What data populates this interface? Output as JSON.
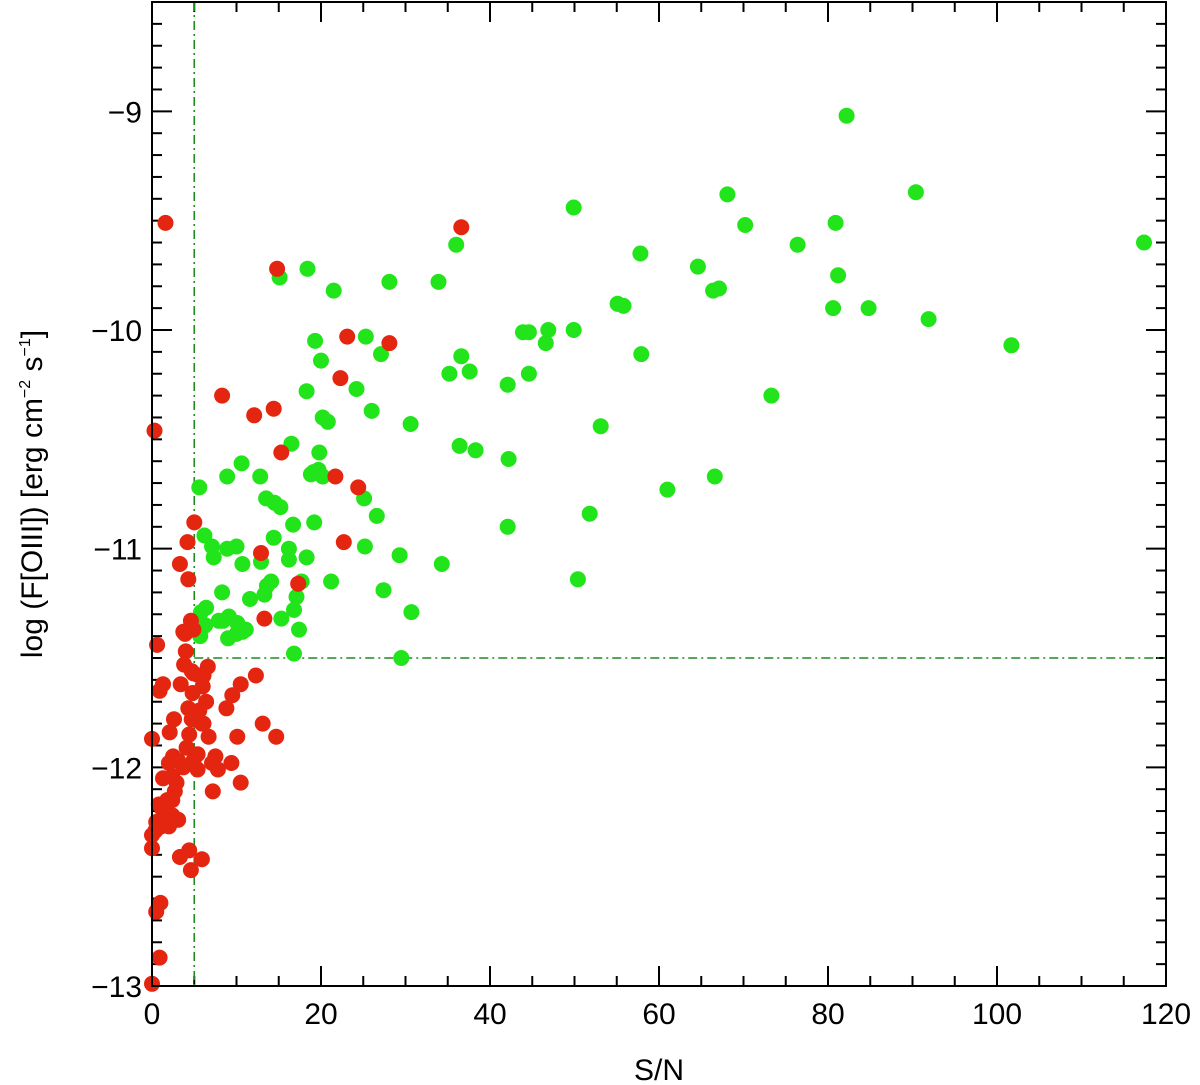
{
  "chart_data": {
    "type": "scatter",
    "title": "",
    "xlabel": "S/N",
    "ylabel": {
      "prefix": "log (F[OIII])  [erg cm",
      "exp1": "−2",
      "mid": " s",
      "exp2": "−1",
      "suffix": "]"
    },
    "xlim": [
      0,
      120
    ],
    "ylim": [
      -13,
      -8.5
    ],
    "x_ticks": [
      0,
      20,
      40,
      60,
      80,
      100,
      120
    ],
    "x_tick_labels": [
      "0",
      "20",
      "40",
      "60",
      "80",
      "100",
      "120"
    ],
    "y_ticks": [
      -13,
      -12,
      -11,
      -10,
      -9
    ],
    "y_tick_labels": [
      "−13",
      "−12",
      "−11",
      "−10",
      "−9"
    ],
    "thresholds": {
      "x": 5,
      "y": -11.5
    },
    "grid": false,
    "colors": {
      "green": "#22e41a",
      "red": "#e4250f",
      "threshold": "#1e8c1e"
    },
    "series": [
      {
        "color": "green",
        "x": [
          82.2,
          68.1,
          90.4,
          49.9,
          80.9,
          70.2,
          36.0,
          76.4,
          117.4,
          57.8,
          64.6,
          15.1,
          18.4,
          81.2,
          28.1,
          33.9,
          67.1,
          66.4,
          21.5,
          55.1,
          55.8,
          80.6,
          84.8,
          91.9,
          25.3,
          43.9,
          44.6,
          46.9,
          49.9,
          19.3,
          101.7,
          46.6,
          27.1,
          36.6,
          20.0,
          57.9,
          35.2,
          37.6,
          44.6,
          24.2,
          18.3,
          42.1,
          73.3,
          26.0,
          20.2,
          20.8,
          30.6,
          53.1,
          36.4,
          38.3,
          16.5,
          19.8,
          42.2,
          19.7,
          10.6,
          19.1,
          20.2,
          18.8,
          12.8,
          8.9,
          66.6,
          61.0,
          5.6,
          13.5,
          14.5,
          15.2,
          25.1,
          51.8,
          26.6,
          16.7,
          19.2,
          42.1,
          14.4,
          6.2,
          10.0,
          25.2,
          8.9,
          16.2,
          7.1,
          29.3,
          34.3,
          18.3,
          16.2,
          12.9,
          7.3,
          10.7,
          50.4,
          14.1,
          21.2,
          8.3,
          27.4,
          13.6,
          17.7,
          17.1,
          13.3,
          11.6,
          5.8,
          6.4,
          16.8,
          30.7,
          9.1,
          8.4,
          15.3,
          7.9,
          10.1,
          6.3,
          17.4,
          5.4,
          11.1,
          10.7,
          5.7,
          6.0,
          10.0,
          9.0,
          16.8,
          29.5
        ]
      },
      {
        "color": "red",
        "x": [
          1.6,
          36.6,
          14.8,
          23.1,
          28.1,
          22.3,
          0.3,
          8.3,
          14.4,
          12.1,
          15.3,
          21.7,
          24.4,
          5.0,
          22.7,
          4.2,
          12.9,
          3.3,
          17.3,
          4.3,
          4.6,
          3.9,
          4.9,
          13.3,
          3.7,
          0.6,
          4.0,
          3.8,
          4.9,
          6.6,
          4.7,
          5.6,
          6.1,
          12.3,
          1.3,
          0.9,
          3.4,
          10.5,
          6.0,
          4.8,
          9.5,
          8.8,
          6.4,
          4.3,
          5.6,
          13.1,
          4.7,
          5.9,
          2.6,
          6.1,
          2.1,
          10.1,
          14.7,
          0.0,
          4.4,
          6.7,
          4.1,
          2.5,
          5.4,
          7.5,
          3.1,
          4.9,
          9.4,
          3.7,
          2.0,
          7.1,
          2.4,
          5.4,
          7.8,
          1.3,
          2.9,
          10.5,
          7.2,
          2.7,
          2.4,
          1.8,
          0.8,
          1.2,
          2.4,
          1.4,
          0.5,
          3.1,
          1.1,
          0.4,
          0.0,
          2.0,
          4.4,
          0.0,
          3.3,
          5.9,
          4.6,
          1.0,
          0.5,
          0.9,
          0.0
        ]
      }
    ]
  },
  "y_values": {
    "green": [
      -9.02,
      -9.38,
      -9.37,
      -9.44,
      -9.51,
      -9.52,
      -9.61,
      -9.61,
      -9.6,
      -9.65,
      -9.71,
      -9.76,
      -9.72,
      -9.75,
      -9.78,
      -9.78,
      -9.81,
      -9.82,
      -9.82,
      -9.88,
      -9.89,
      -9.9,
      -9.9,
      -9.95,
      -10.03,
      -10.01,
      -10.01,
      -10.0,
      -10.0,
      -10.05,
      -10.07,
      -10.06,
      -10.11,
      -10.12,
      -10.14,
      -10.11,
      -10.2,
      -10.19,
      -10.2,
      -10.27,
      -10.28,
      -10.25,
      -10.3,
      -10.37,
      -10.4,
      -10.42,
      -10.43,
      -10.44,
      -10.53,
      -10.55,
      -10.52,
      -10.56,
      -10.59,
      -10.64,
      -10.61,
      -10.65,
      -10.67,
      -10.66,
      -10.67,
      -10.67,
      -10.67,
      -10.73,
      -10.72,
      -10.77,
      -10.79,
      -10.81,
      -10.77,
      -10.84,
      -10.85,
      -10.89,
      -10.88,
      -10.9,
      -10.95,
      -10.94,
      -10.99,
      -10.99,
      -11.0,
      -11.0,
      -10.99,
      -11.03,
      -11.07,
      -11.04,
      -11.05,
      -11.06,
      -11.04,
      -11.07,
      -11.14,
      -11.15,
      -11.15,
      -11.2,
      -11.19,
      -11.17,
      -11.15,
      -11.22,
      -11.21,
      -11.23,
      -11.29,
      -11.27,
      -11.28,
      -11.29,
      -11.31,
      -11.33,
      -11.32,
      -11.33,
      -11.34,
      -11.35,
      -11.37,
      -11.36,
      -11.37,
      -11.38,
      -11.4,
      -11.36,
      -11.39,
      -11.41,
      -11.48,
      -11.5
    ],
    "red": [
      -9.51,
      -9.53,
      -9.72,
      -10.03,
      -10.06,
      -10.22,
      -10.46,
      -10.3,
      -10.36,
      -10.39,
      -10.56,
      -10.67,
      -10.72,
      -10.88,
      -10.97,
      -10.97,
      -11.02,
      -11.07,
      -11.16,
      -11.14,
      -11.33,
      -11.39,
      -11.37,
      -11.32,
      -11.38,
      -11.44,
      -11.47,
      -11.53,
      -11.57,
      -11.54,
      -11.56,
      -11.58,
      -11.58,
      -11.58,
      -11.62,
      -11.65,
      -11.62,
      -11.62,
      -11.63,
      -11.66,
      -11.67,
      -11.73,
      -11.7,
      -11.73,
      -11.74,
      -11.8,
      -11.78,
      -11.8,
      -11.78,
      -11.8,
      -11.84,
      -11.86,
      -11.86,
      -11.87,
      -11.85,
      -11.86,
      -11.91,
      -11.95,
      -11.94,
      -11.95,
      -11.97,
      -11.97,
      -11.98,
      -12.0,
      -11.98,
      -11.98,
      -12.04,
      -12.01,
      -12.01,
      -12.05,
      -12.07,
      -12.07,
      -12.11,
      -12.11,
      -12.15,
      -12.15,
      -12.17,
      -12.19,
      -12.22,
      -12.24,
      -12.25,
      -12.24,
      -12.27,
      -12.29,
      -12.31,
      -12.27,
      -12.38,
      -12.37,
      -12.41,
      -12.42,
      -12.47,
      -12.62,
      -12.66,
      -12.87,
      -12.99
    ]
  }
}
